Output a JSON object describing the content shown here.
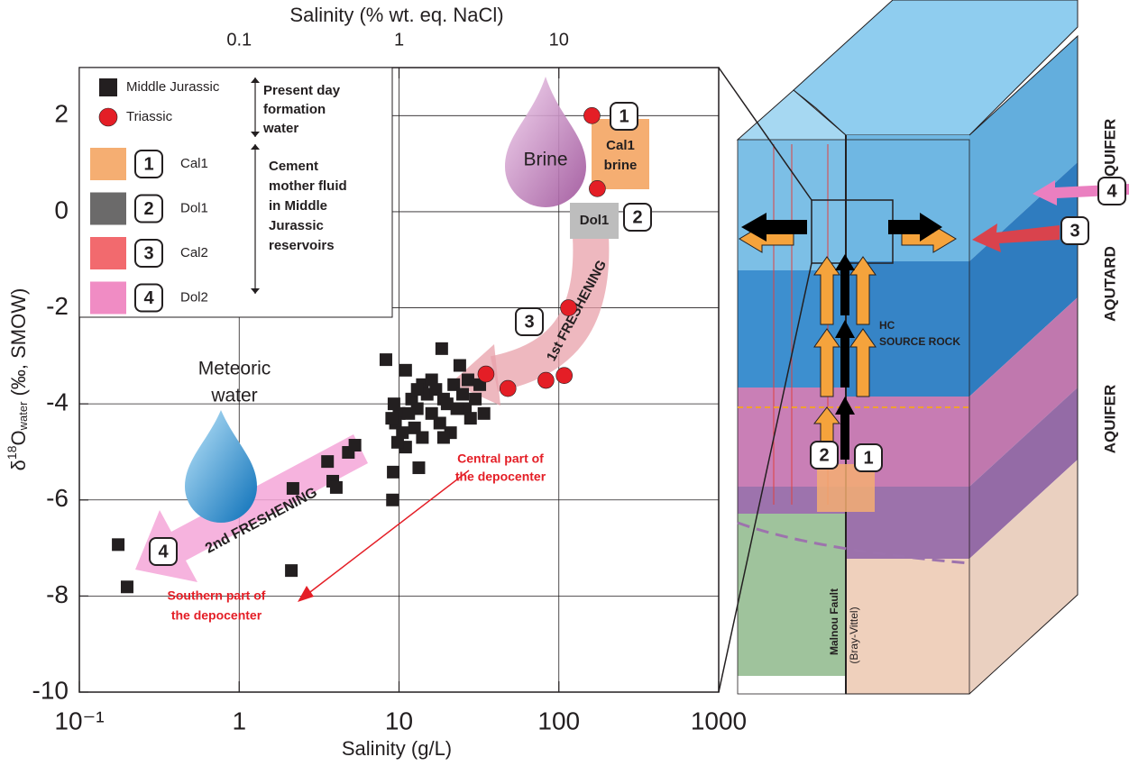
{
  "chart_data": {
    "type": "scatter",
    "xlabel": "Salinity (g/L)",
    "x2label": "Salinity (% wt. eq. NaCl)",
    "ylabel": [
      "δ",
      "18",
      "O",
      "water",
      " (‰, SMOW)"
    ],
    "log_x": true,
    "xlim": [
      0.1,
      1000
    ],
    "xticks": [
      {
        "value": 0.1,
        "label": "10⁻¹"
      },
      1,
      10,
      100,
      1000
    ],
    "x2lim": [
      0.01,
      100
    ],
    "x2ticks": [
      0.1,
      1,
      10
    ],
    "ylim": [
      -10,
      3
    ],
    "yticks": [
      2,
      0,
      -2,
      -4,
      -6,
      -8,
      -10
    ],
    "grid": true,
    "legend": "upper left",
    "series": [
      {
        "name": "Middle Jurassic",
        "color": "#231f20",
        "marker": "square",
        "x": [
          0.175,
          0.199,
          2.12,
          2.17,
          3.57,
          3.85,
          4.05,
          4.82,
          5.3,
          8.28,
          9.1,
          9.2,
          13.3,
          18.5,
          11,
          12,
          13,
          10,
          9.5,
          9,
          10.5,
          11,
          9.8,
          14,
          15,
          16,
          17,
          18,
          19,
          20,
          21,
          22,
          24,
          25,
          26,
          27,
          28,
          30,
          32,
          34,
          12.5,
          14,
          11.5,
          13,
          23,
          19,
          16,
          9.3
        ],
        "values": [
          -6.93,
          -7.81,
          -7.47,
          -5.76,
          -5.2,
          -5.61,
          -5.74,
          -5.01,
          -4.86,
          -3.08,
          -6.0,
          -5.42,
          -5.33,
          -2.85,
          -3.3,
          -3.9,
          -4.1,
          -4.2,
          -4.4,
          -4.3,
          -4.6,
          -4.9,
          -4.8,
          -3.6,
          -3.8,
          -4.2,
          -3.7,
          -4.4,
          -3.9,
          -4.0,
          -4.6,
          -3.6,
          -3.2,
          -3.8,
          -4.1,
          -3.5,
          -4.3,
          -3.9,
          -3.6,
          -4.2,
          -4.5,
          -4.7,
          -4.2,
          -3.7,
          -4.1,
          -4.7,
          -3.5,
          -4.0
        ]
      },
      {
        "name": "Triassic",
        "color": "#e41e26",
        "marker": "circle",
        "x": [
          161,
          174,
          115,
          35,
          48,
          83,
          108
        ],
        "values": [
          2.0,
          0.48,
          -2.0,
          -3.38,
          -3.68,
          -3.51,
          -3.41
        ]
      }
    ],
    "legend_swatches": [
      {
        "number": "1",
        "label": "Cal1",
        "color": "#f5ae72"
      },
      {
        "number": "2",
        "label": "Dol1",
        "color": "#6b6a6a"
      },
      {
        "number": "3",
        "label": "Cal2",
        "color": "#f26a6e"
      },
      {
        "number": "4",
        "label": "Dol2",
        "color": "#f08cc4"
      }
    ],
    "legend_notes": {
      "present": [
        "Present day",
        "formation",
        "water"
      ],
      "cement": [
        "Cement",
        "mother fluid",
        "in Middle",
        "Jurassic",
        "reservoirs"
      ]
    },
    "annotations": {
      "brine": "Brine",
      "meteoric": [
        "Meteoric",
        "water"
      ],
      "cal1_box": [
        "Cal1",
        "brine"
      ],
      "dol1_box": "Dol1",
      "markers": [
        "1",
        "2",
        "3",
        "4"
      ],
      "first": "1st FRESHENING",
      "second": "2nd FRESHENING",
      "central": [
        "Central part of",
        "the depocenter"
      ],
      "southern": [
        "Southern part of",
        "the depocenter"
      ]
    }
  },
  "diagram": {
    "zones": [
      "AQUIFER",
      "AQUTARD",
      "AQUIFER"
    ],
    "source_rock": [
      "HC",
      "SOURCE ROCK"
    ],
    "fault": [
      "Malnou Fault",
      "(Bray-Vittel)"
    ],
    "markers": [
      "1",
      "2",
      "3",
      "4"
    ]
  }
}
